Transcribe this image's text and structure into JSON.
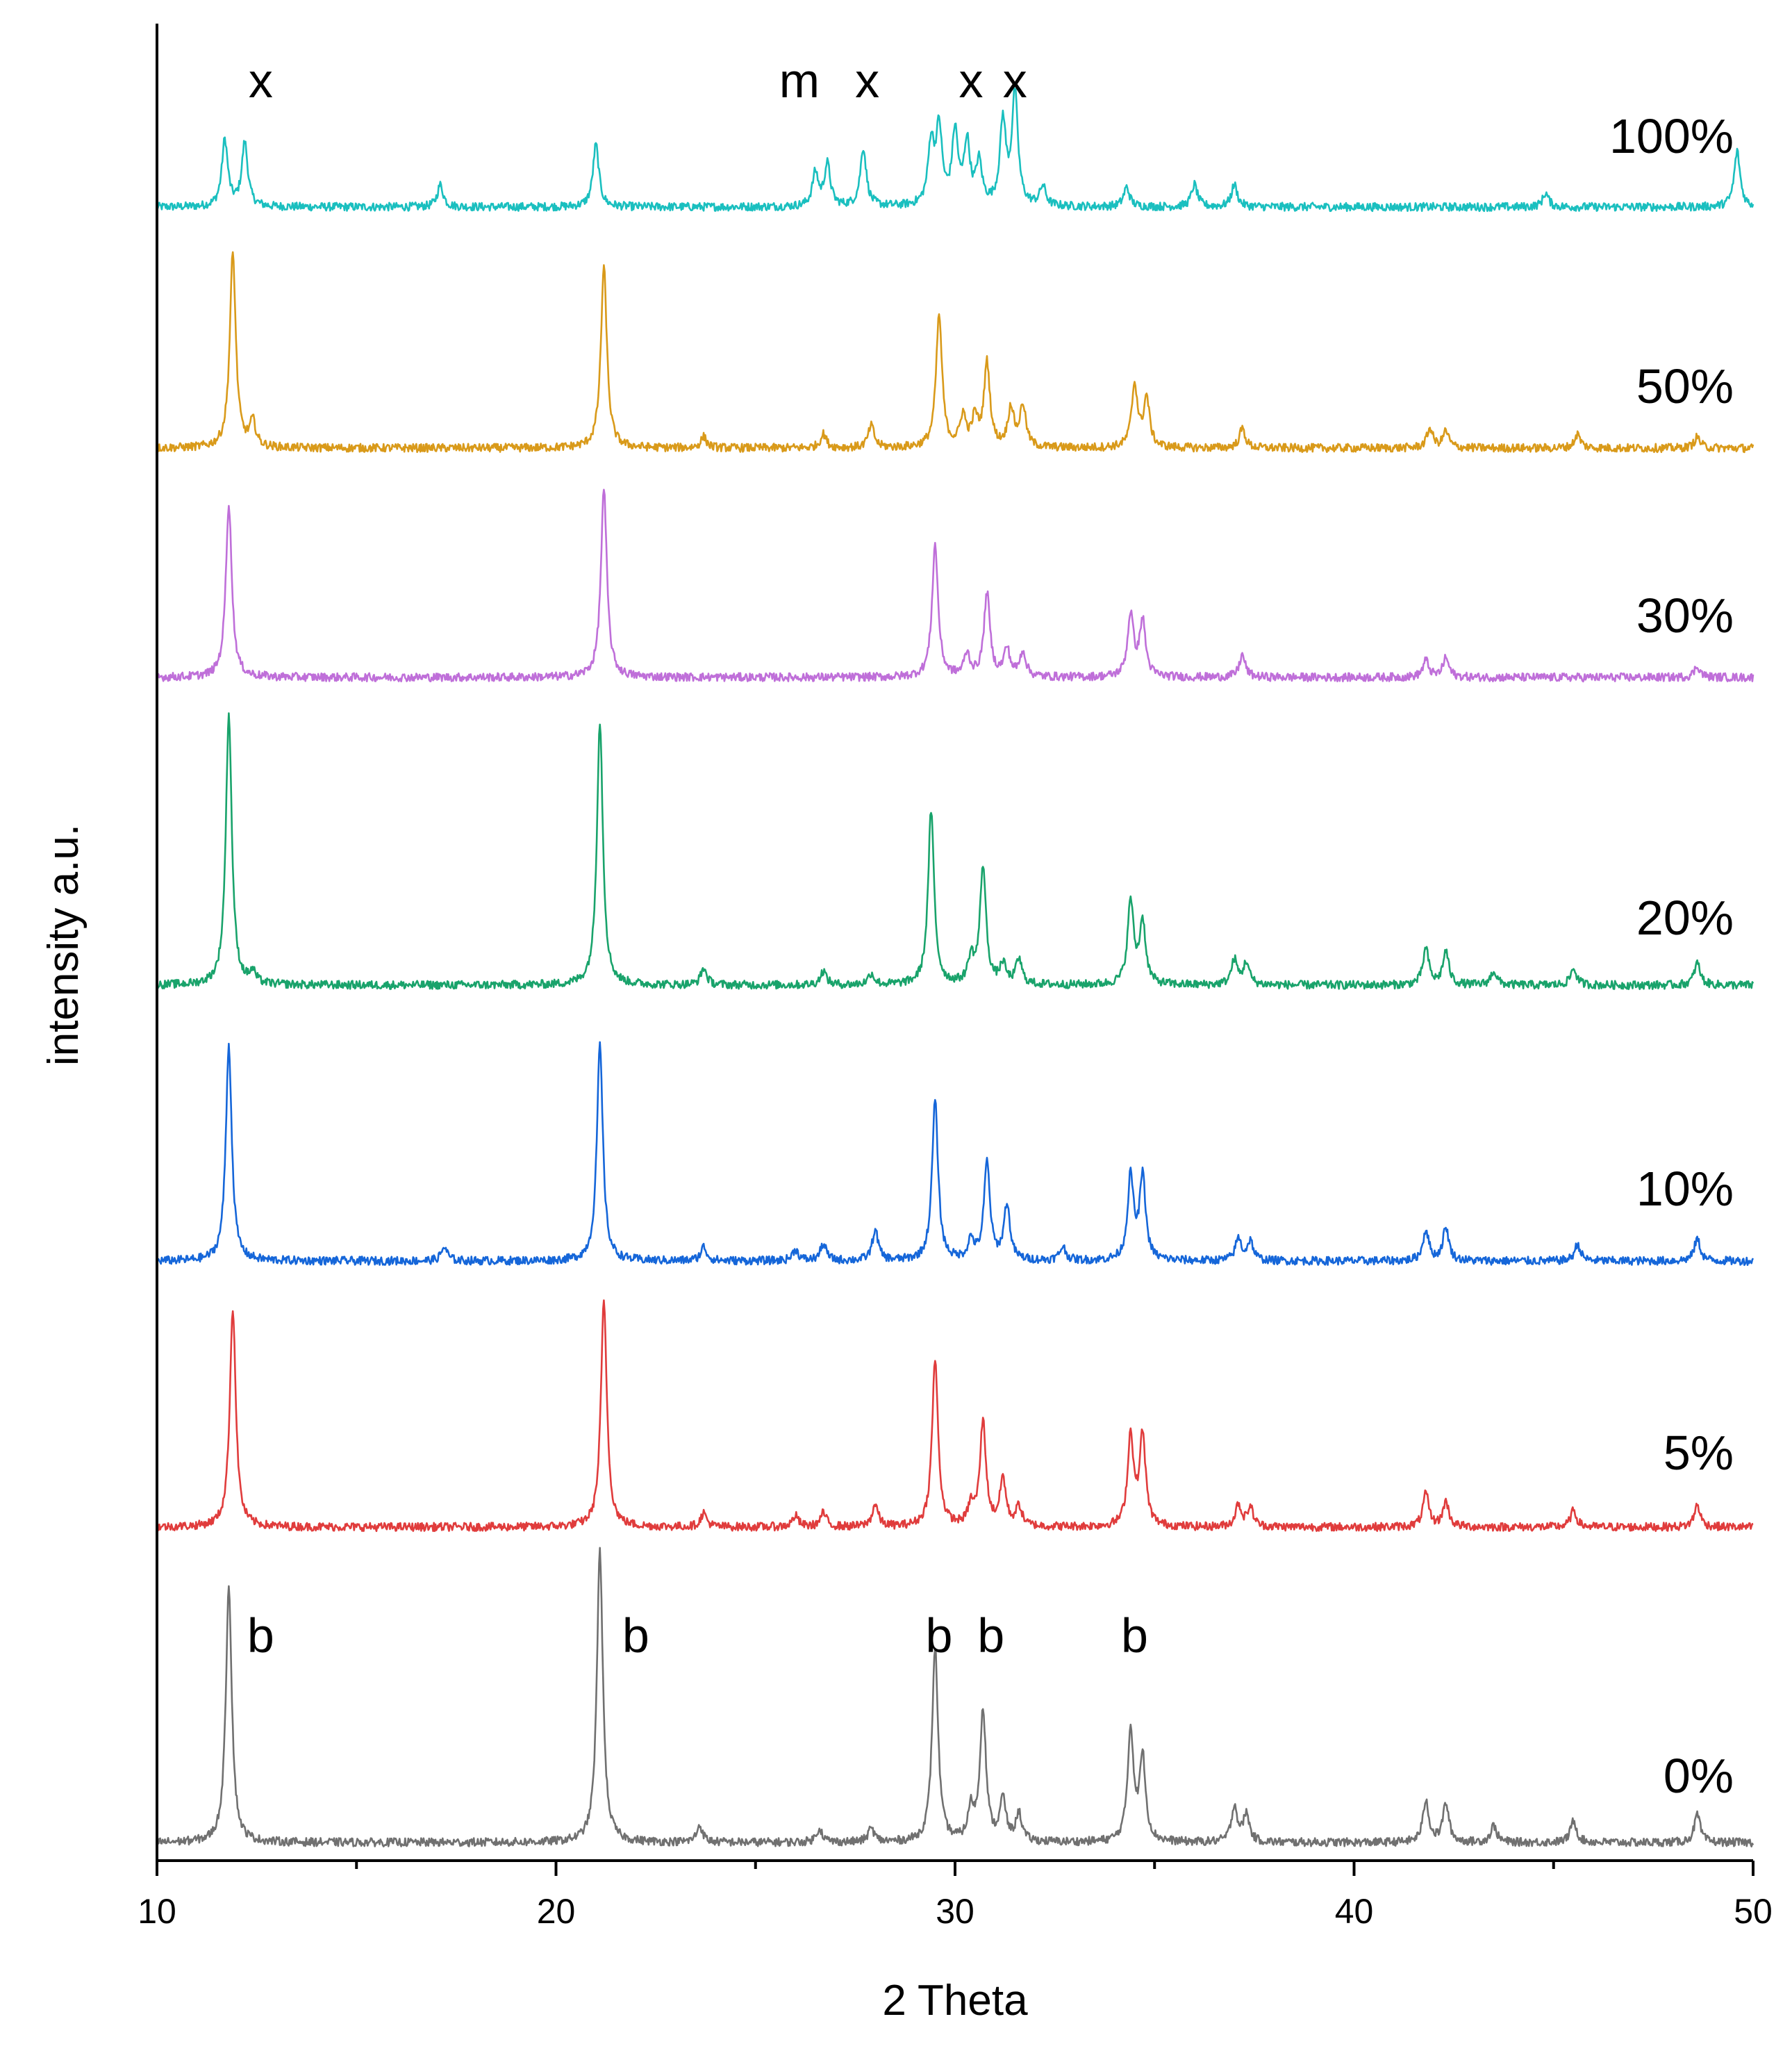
{
  "chart_data": {
    "type": "line",
    "title": "",
    "xlabel": "2 Theta",
    "ylabel": "intensity a.u.",
    "xlim": [
      10,
      50
    ],
    "x_ticks": [
      10,
      20,
      30,
      40,
      50
    ],
    "x_minor_ticks": [
      15,
      25,
      35,
      45
    ],
    "y_ticks": [],
    "grid": false,
    "legend": "none (series labels printed at right of each trace)",
    "stacked_offset": true,
    "series": [
      {
        "name": "100%",
        "color": "#1ABFBF",
        "peaks": [
          [
            11.7,
            48
          ],
          [
            12.2,
            46
          ],
          [
            17.1,
            16
          ],
          [
            21.0,
            45
          ],
          [
            26.5,
            24
          ],
          [
            26.8,
            30
          ],
          [
            27.7,
            42
          ],
          [
            29.4,
            44
          ],
          [
            29.6,
            54
          ],
          [
            30.0,
            52
          ],
          [
            30.3,
            44
          ],
          [
            30.6,
            30
          ],
          [
            31.2,
            60
          ],
          [
            31.5,
            80
          ],
          [
            32.2,
            14
          ],
          [
            34.3,
            14
          ],
          [
            36.0,
            16
          ],
          [
            37.0,
            16
          ],
          [
            44.8,
            10
          ],
          [
            49.6,
            40
          ]
        ]
      },
      {
        "name": "50%",
        "color": "#D99A1A",
        "peaks": [
          [
            11.9,
            140
          ],
          [
            12.4,
            18
          ],
          [
            21.2,
            130
          ],
          [
            23.7,
            8
          ],
          [
            26.7,
            10
          ],
          [
            27.9,
            16
          ],
          [
            29.6,
            95
          ],
          [
            30.2,
            22
          ],
          [
            30.5,
            20
          ],
          [
            30.8,
            60
          ],
          [
            31.4,
            28
          ],
          [
            31.7,
            30
          ],
          [
            34.5,
            45
          ],
          [
            34.8,
            35
          ],
          [
            37.2,
            14
          ],
          [
            41.9,
            14
          ],
          [
            42.3,
            12
          ],
          [
            45.6,
            10
          ],
          [
            48.6,
            8
          ]
        ]
      },
      {
        "name": "30%",
        "color": "#BF6FD9",
        "peaks": [
          [
            11.8,
            125
          ],
          [
            21.2,
            135
          ],
          [
            29.5,
            95
          ],
          [
            30.3,
            16
          ],
          [
            30.8,
            60
          ],
          [
            31.3,
            20
          ],
          [
            31.7,
            18
          ],
          [
            34.4,
            45
          ],
          [
            34.7,
            40
          ],
          [
            37.2,
            16
          ],
          [
            41.8,
            12
          ],
          [
            42.3,
            14
          ],
          [
            48.6,
            8
          ]
        ]
      },
      {
        "name": "20%",
        "color": "#19A36B",
        "peaks": [
          [
            11.8,
            195
          ],
          [
            12.4,
            8
          ],
          [
            21.1,
            190
          ],
          [
            23.7,
            12
          ],
          [
            26.7,
            10
          ],
          [
            27.9,
            8
          ],
          [
            29.4,
            125
          ],
          [
            30.4,
            18
          ],
          [
            30.7,
            85
          ],
          [
            31.2,
            14
          ],
          [
            31.6,
            18
          ],
          [
            34.4,
            60
          ],
          [
            34.7,
            45
          ],
          [
            37.0,
            18
          ],
          [
            37.3,
            16
          ],
          [
            41.8,
            26
          ],
          [
            42.3,
            24
          ],
          [
            43.5,
            10
          ],
          [
            45.5,
            12
          ],
          [
            48.6,
            16
          ]
        ]
      },
      {
        "name": "10%",
        "color": "#1566D9",
        "peaks": [
          [
            11.8,
            155
          ],
          [
            17.2,
            10
          ],
          [
            21.1,
            155
          ],
          [
            23.7,
            10
          ],
          [
            26.0,
            8
          ],
          [
            26.7,
            12
          ],
          [
            28.0,
            22
          ],
          [
            29.5,
            115
          ],
          [
            30.4,
            14
          ],
          [
            30.8,
            70
          ],
          [
            31.3,
            40
          ],
          [
            32.7,
            10
          ],
          [
            34.4,
            60
          ],
          [
            34.7,
            60
          ],
          [
            37.1,
            16
          ],
          [
            37.4,
            14
          ],
          [
            41.8,
            22
          ],
          [
            42.3,
            24
          ],
          [
            45.6,
            12
          ],
          [
            48.6,
            16
          ]
        ]
      },
      {
        "name": "5%",
        "color": "#E03C3C",
        "peaks": [
          [
            11.9,
            158
          ],
          [
            21.2,
            162
          ],
          [
            23.7,
            10
          ],
          [
            26.0,
            8
          ],
          [
            26.7,
            10
          ],
          [
            28.0,
            16
          ],
          [
            29.5,
            120
          ],
          [
            30.4,
            14
          ],
          [
            30.7,
            75
          ],
          [
            31.2,
            34
          ],
          [
            31.6,
            14
          ],
          [
            34.4,
            65
          ],
          [
            34.7,
            65
          ],
          [
            37.1,
            16
          ],
          [
            37.4,
            14
          ],
          [
            41.8,
            24
          ],
          [
            42.3,
            18
          ],
          [
            45.5,
            12
          ],
          [
            48.6,
            16
          ]
        ]
      },
      {
        "name": "0%",
        "color": "#707070",
        "peaks": [
          [
            11.8,
            185
          ],
          [
            21.1,
            210
          ],
          [
            23.6,
            12
          ],
          [
            26.6,
            10
          ],
          [
            27.9,
            10
          ],
          [
            29.5,
            140
          ],
          [
            30.4,
            22
          ],
          [
            30.7,
            95
          ],
          [
            31.2,
            30
          ],
          [
            31.6,
            20
          ],
          [
            34.4,
            80
          ],
          [
            34.7,
            60
          ],
          [
            37.0,
            26
          ],
          [
            37.3,
            20
          ],
          [
            41.8,
            30
          ],
          [
            42.3,
            28
          ],
          [
            43.5,
            12
          ],
          [
            45.5,
            16
          ],
          [
            48.6,
            20
          ]
        ]
      }
    ],
    "annotations": [
      {
        "text": "x",
        "x": 12.6,
        "series": "100%"
      },
      {
        "text": "m",
        "x": 26.1,
        "series": "100%"
      },
      {
        "text": "x",
        "x": 27.8,
        "series": "100%"
      },
      {
        "text": "x",
        "x": 30.4,
        "series": "100%"
      },
      {
        "text": "x",
        "x": 31.5,
        "series": "100%"
      },
      {
        "text": "b",
        "x": 12.6,
        "series": "0%"
      },
      {
        "text": "b",
        "x": 22.0,
        "series": "0%"
      },
      {
        "text": "b",
        "x": 29.6,
        "series": "0%"
      },
      {
        "text": "b",
        "x": 30.9,
        "series": "0%"
      },
      {
        "text": "b",
        "x": 34.5,
        "series": "0%"
      }
    ]
  }
}
